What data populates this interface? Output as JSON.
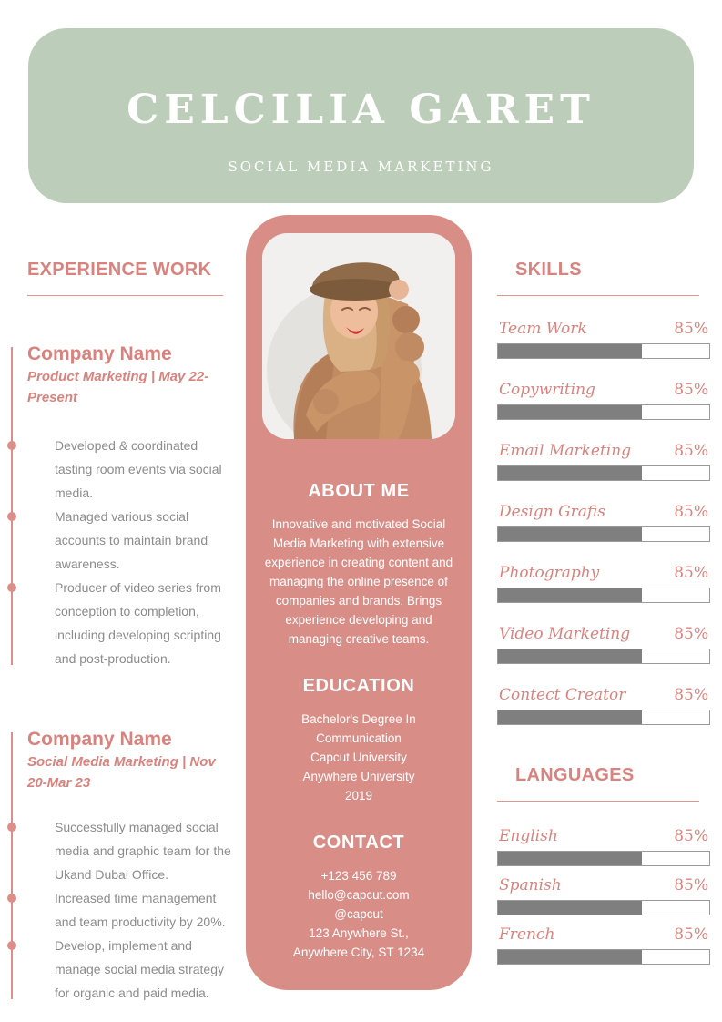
{
  "header": {
    "name": "CELCILIA GARET",
    "subtitle": "SOCIAL MEDIA MARKETING"
  },
  "experience": {
    "heading": "EXPERIENCE WORK",
    "jobs": [
      {
        "company": "Company Name",
        "meta": "Product Marketing | May 22-Present",
        "bullets": [
          "Developed & coordinated tasting room events via social media.",
          "Managed various social accounts to maintain brand awareness.",
          "Producer of video series from conception to completion, including developing scripting and post-production."
        ]
      },
      {
        "company": "Company Name",
        "meta": "Social Media Marketing | Nov 20-Mar 23",
        "bullets": [
          "Successfully managed social media and graphic team for the Ukand Dubai Office.",
          "Increased time management and team productivity by 20%.",
          "Develop, implement and manage social media strategy for organic and paid media."
        ]
      }
    ]
  },
  "about": {
    "heading": "ABOUT ME",
    "text": "Innovative and motivated Social Media Marketing with extensive experience in creating content and managing the online presence of companies and brands. Brings experience developing and managing creative teams."
  },
  "education": {
    "heading": "EDUCATION",
    "lines": [
      "Bachelor's Degree In Communication",
      "Capcut University",
      "Anywhere University",
      "2019"
    ]
  },
  "contact": {
    "heading": "CONTACT",
    "lines": [
      "+123  456 789",
      "hello@capcut.com",
      "@capcut",
      "123 Anywhere St.,",
      "Anywhere City, ST 1234"
    ]
  },
  "skills": {
    "heading": "SKILLS",
    "items": [
      {
        "label": "Team Work",
        "value": "85%",
        "fill_pct": 68
      },
      {
        "label": "Copywriting",
        "value": "85%",
        "fill_pct": 68
      },
      {
        "label": "Email Marketing",
        "value": "85%",
        "fill_pct": 68
      },
      {
        "label": "Design Grafis",
        "value": "85%",
        "fill_pct": 68
      },
      {
        "label": "Photography",
        "value": "85%",
        "fill_pct": 68
      },
      {
        "label": "Video Marketing",
        "value": "85%",
        "fill_pct": 68
      },
      {
        "label": "Contect Creator",
        "value": "85%",
        "fill_pct": 68
      }
    ]
  },
  "languages": {
    "heading": "LANGUAGES",
    "items": [
      {
        "label": "English",
        "value": "85%",
        "fill_pct": 68
      },
      {
        "label": "Spanish",
        "value": "85%",
        "fill_pct": 68
      },
      {
        "label": "French",
        "value": "85%",
        "fill_pct": 68
      }
    ]
  },
  "colors": {
    "header_green": "#bccdb9",
    "panel_pink": "#d98d87",
    "accent_pink_text": "#d9837e",
    "body_gray_text": "#8c8c8c",
    "bar_fill_gray": "#7f7f7f",
    "white": "#ffffff"
  }
}
